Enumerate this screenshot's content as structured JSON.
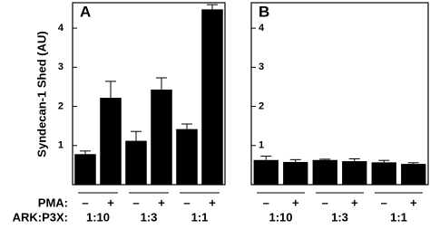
{
  "chart_data": [
    {
      "type": "bar",
      "panel": "A",
      "y_label": "Syndecan-1 Shed (AU)",
      "category_label": "PMA:",
      "group_label": "ARK:P3X:",
      "categories": [
        "–",
        "+",
        "–",
        "+",
        "–",
        "+"
      ],
      "groups": [
        "1:10",
        "1:3",
        "1:1"
      ],
      "values": [
        0.78,
        2.22,
        1.12,
        2.43,
        1.42,
        4.48
      ],
      "errors": [
        0.08,
        0.42,
        0.24,
        0.3,
        0.13,
        0.12
      ],
      "color": "#000000",
      "ylim": [
        0,
        4.65
      ],
      "yticks": [
        1,
        2,
        3,
        4
      ]
    },
    {
      "type": "bar",
      "panel": "B",
      "categories": [
        "–",
        "+",
        "–",
        "+",
        "–",
        "+"
      ],
      "groups": [
        "1:10",
        "1:3",
        "1:1"
      ],
      "values": [
        0.63,
        0.58,
        0.63,
        0.6,
        0.57,
        0.53
      ],
      "errors": [
        0.1,
        0.06,
        0.02,
        0.06,
        0.05,
        0.03
      ],
      "color": "#000000",
      "ylim": [
        0,
        4.65
      ],
      "yticks": [
        1,
        2,
        3,
        4
      ]
    }
  ]
}
